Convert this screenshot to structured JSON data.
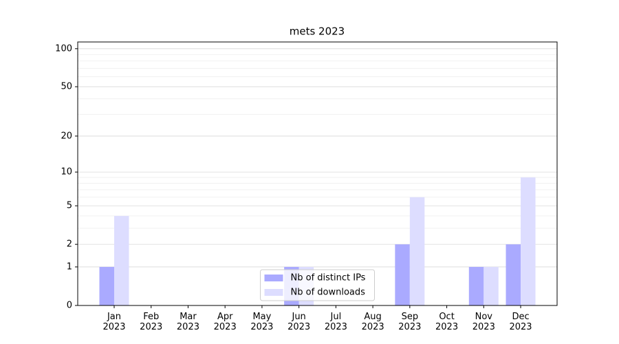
{
  "chart_data": {
    "type": "bar",
    "title": "mets 2023",
    "categories": [
      "Jan\n2023",
      "Feb\n2023",
      "Mar\n2023",
      "Apr\n2023",
      "May\n2023",
      "Jun\n2023",
      "Jul\n2023",
      "Aug\n2023",
      "Sep\n2023",
      "Oct\n2023",
      "Nov\n2023",
      "Dec\n2023"
    ],
    "series": [
      {
        "name": "Nb of distinct IPs",
        "color": "#aaaaff",
        "values": [
          1,
          0,
          0,
          0,
          0,
          1,
          0,
          0,
          2,
          0,
          1,
          2
        ]
      },
      {
        "name": "Nb of downloads",
        "color": "#ddddff",
        "values": [
          4,
          0,
          0,
          0,
          0,
          1,
          0,
          0,
          6,
          0,
          1,
          9
        ]
      }
    ],
    "yscale": "log1p",
    "ylim": [
      0,
      113
    ],
    "yticks": [
      0,
      1,
      2,
      5,
      10,
      20,
      50,
      100
    ],
    "yminorticks": [
      3,
      4,
      6,
      7,
      8,
      9,
      30,
      40,
      60,
      70,
      80,
      90
    ],
    "grid": true,
    "legend": "lower center"
  }
}
